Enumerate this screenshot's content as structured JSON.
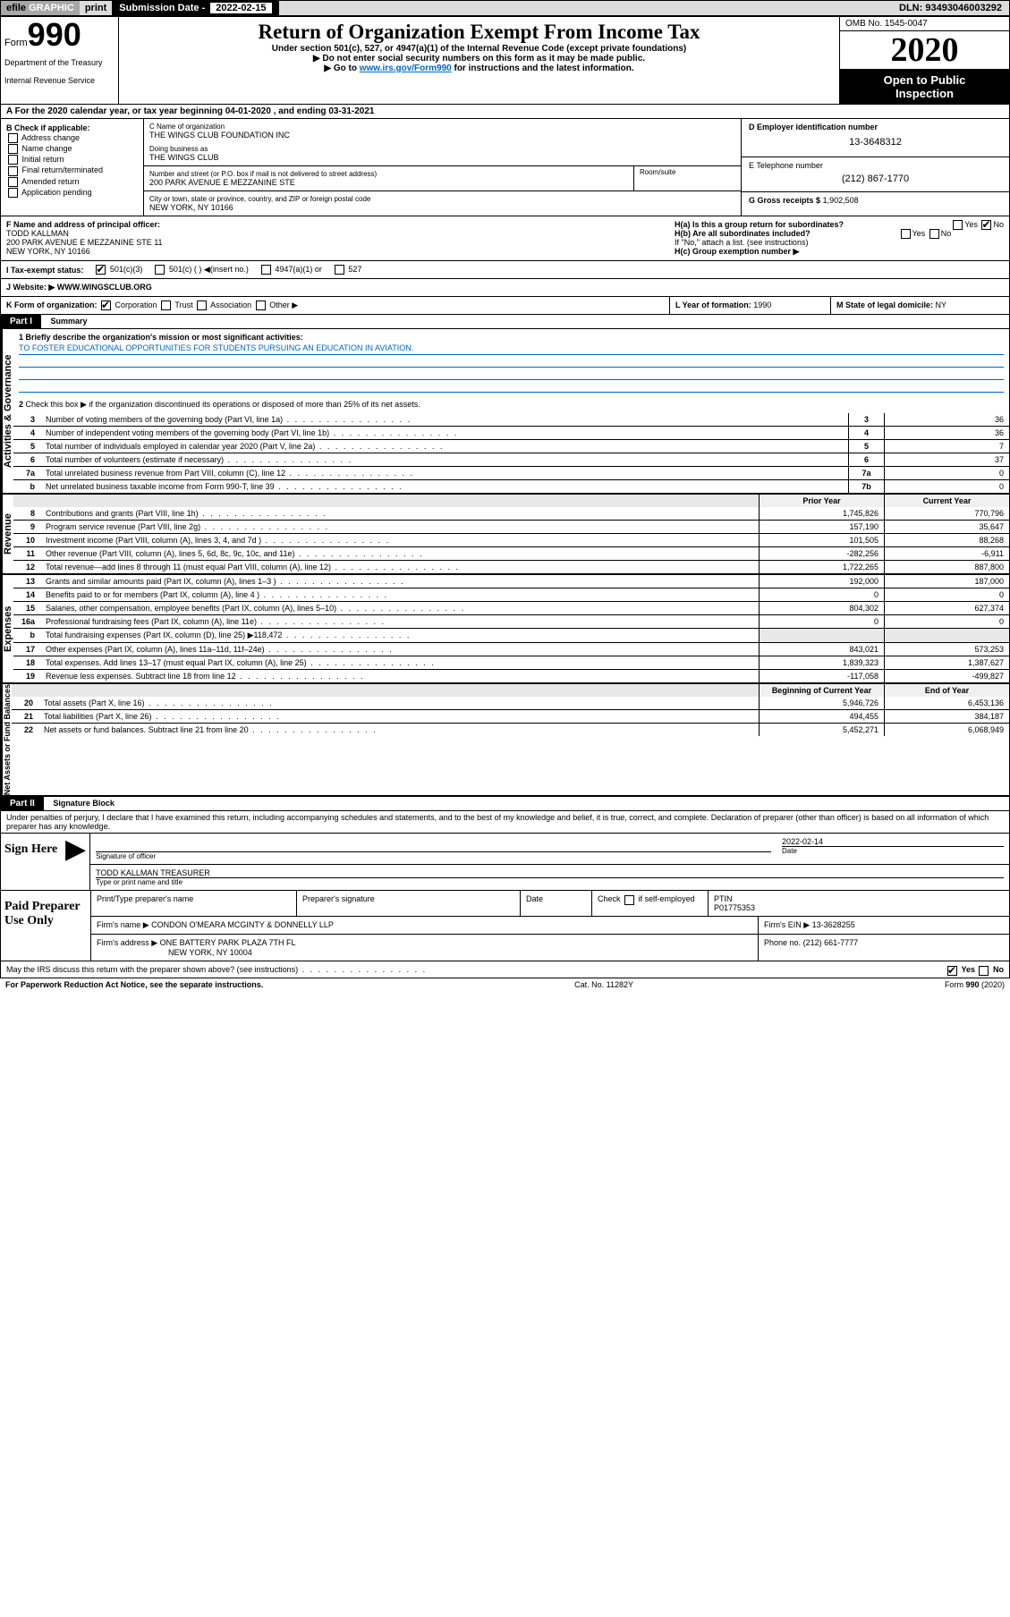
{
  "topbar": {
    "efile": "efile",
    "graphic": "GRAPHIC",
    "print": "print",
    "subdate_label": "Submission Date -",
    "subdate": "2022-02-15",
    "dln": "DLN: 93493046003292"
  },
  "header": {
    "form": "Form",
    "number": "990",
    "dept1": "Department of the Treasury",
    "dept2": "Internal Revenue Service",
    "title": "Return of Organization Exempt From Income Tax",
    "subtitle": "Under section 501(c), 527, or 4947(a)(1) of the Internal Revenue Code (except private foundations)",
    "note1": "▶ Do not enter social security numbers on this form as it may be made public.",
    "note2_pre": "▶ Go to ",
    "note2_link": "www.irs.gov/Form990",
    "note2_post": " for instructions and the latest information.",
    "omb": "OMB No. 1545-0047",
    "year": "2020",
    "inspect1": "Open to Public",
    "inspect2": "Inspection"
  },
  "line_a": {
    "text": "A  For the 2020 calendar year, or tax year beginning 04-01-2020    , and ending 03-31-2021"
  },
  "col_b": {
    "label": "B Check if applicable:",
    "items": [
      "Address change",
      "Name change",
      "Initial return",
      "Final return/terminated",
      "Amended return",
      "Application pending"
    ]
  },
  "col_c": {
    "name_label": "C Name of organization",
    "name": "THE WINGS CLUB FOUNDATION INC",
    "dba_label": "Doing business as",
    "dba": "THE WINGS CLUB",
    "addr_label": "Number and street (or P.O. box if mail is not delivered to street address)",
    "addr": "200 PARK AVENUE E MEZZANINE STE",
    "room_label": "Room/suite",
    "city_label": "City or town, state or province, country, and ZIP or foreign postal code",
    "city": "NEW YORK, NY  10166"
  },
  "col_d": {
    "ein_label": "D Employer identification number",
    "ein": "13-3648312",
    "phone_label": "E Telephone number",
    "phone": "(212) 867-1770",
    "gross_label": "G Gross receipts $",
    "gross": "1,902,508"
  },
  "row_f": {
    "left_label": "F  Name and address of principal officer:",
    "name": "TODD KALLMAN",
    "addr1": "200 PARK AVENUE E MEZZANINE STE 11",
    "addr2": "NEW YORK, NY  10166",
    "ha_label": "H(a)  Is this a group return for subordinates?",
    "ha_yes": "Yes",
    "ha_no": "No",
    "hb_label": "H(b)  Are all subordinates included?",
    "hb_yes": "Yes",
    "hb_no": "No",
    "hb_note": "If \"No,\" attach a list. (see instructions)",
    "hc_label": "H(c)  Group exemption number ▶"
  },
  "row_i": {
    "label": "I   Tax-exempt status:",
    "o1": "501(c)(3)",
    "o2": "501(c) (   ) ◀(insert no.)",
    "o3": "4947(a)(1) or",
    "o4": "527"
  },
  "row_j": {
    "label": "J   Website: ▶",
    "site": "WWW.WINGSCLUB.ORG"
  },
  "row_k": {
    "label": "K Form of organization:",
    "o1": "Corporation",
    "o2": "Trust",
    "o3": "Association",
    "o4": "Other ▶",
    "l_label": "L Year of formation:",
    "l_val": "1990",
    "m_label": "M State of legal domicile:",
    "m_val": "NY"
  },
  "part1": {
    "hdr": "Part I",
    "title": "Summary",
    "q1": "1  Briefly describe the organization's mission or most significant activities:",
    "desc": "TO FOSTER EDUCATIONAL OPPORTUNITIES FOR STUDENTS PURSUING AN EDUCATION IN AVIATION.",
    "q2": "Check this box ▶      if the organization discontinued its operations or disposed of more than 25% of its net assets."
  },
  "governance": {
    "vert": "Activities & Governance",
    "rows": [
      {
        "n": "3",
        "label": "Number of voting members of the governing body (Part VI, line 1a)",
        "box": "3",
        "val": "36"
      },
      {
        "n": "4",
        "label": "Number of independent voting members of the governing body (Part VI, line 1b)",
        "box": "4",
        "val": "36"
      },
      {
        "n": "5",
        "label": "Total number of individuals employed in calendar year 2020 (Part V, line 2a)",
        "box": "5",
        "val": "7"
      },
      {
        "n": "6",
        "label": "Total number of volunteers (estimate if necessary)",
        "box": "6",
        "val": "37"
      },
      {
        "n": "7a",
        "label": "Total unrelated business revenue from Part VIII, column (C), line 12",
        "box": "7a",
        "val": "0"
      },
      {
        "n": "b",
        "label": "Net unrelated business taxable income from Form 990-T, line 39",
        "box": "7b",
        "val": "0"
      }
    ]
  },
  "revenue": {
    "vert": "Revenue",
    "hdr_prior": "Prior Year",
    "hdr_curr": "Current Year",
    "rows": [
      {
        "n": "8",
        "label": "Contributions and grants (Part VIII, line 1h)",
        "p": "1,745,826",
        "c": "770,796"
      },
      {
        "n": "9",
        "label": "Program service revenue (Part VIII, line 2g)",
        "p": "157,190",
        "c": "35,647"
      },
      {
        "n": "10",
        "label": "Investment income (Part VIII, column (A), lines 3, 4, and 7d )",
        "p": "101,505",
        "c": "88,268"
      },
      {
        "n": "11",
        "label": "Other revenue (Part VIII, column (A), lines 5, 6d, 8c, 9c, 10c, and 11e)",
        "p": "-282,256",
        "c": "-6,911"
      },
      {
        "n": "12",
        "label": "Total revenue—add lines 8 through 11 (must equal Part VIII, column (A), line 12)",
        "p": "1,722,265",
        "c": "887,800"
      }
    ]
  },
  "expenses": {
    "vert": "Expenses",
    "rows": [
      {
        "n": "13",
        "label": "Grants and similar amounts paid (Part IX, column (A), lines 1–3 )",
        "p": "192,000",
        "c": "187,000"
      },
      {
        "n": "14",
        "label": "Benefits paid to or for members (Part IX, column (A), line 4 )",
        "p": "0",
        "c": "0"
      },
      {
        "n": "15",
        "label": "Salaries, other compensation, employee benefits (Part IX, column (A), lines 5–10)",
        "p": "804,302",
        "c": "627,374"
      },
      {
        "n": "16a",
        "label": "Professional fundraising fees (Part IX, column (A), line 11e)",
        "p": "0",
        "c": "0"
      },
      {
        "n": "b",
        "label": "Total fundraising expenses (Part IX, column (D), line 25) ▶118,472",
        "p": "",
        "c": "",
        "shade": true
      },
      {
        "n": "17",
        "label": "Other expenses (Part IX, column (A), lines 11a–11d, 11f–24e)",
        "p": "843,021",
        "c": "573,253"
      },
      {
        "n": "18",
        "label": "Total expenses. Add lines 13–17 (must equal Part IX, column (A), line 25)",
        "p": "1,839,323",
        "c": "1,387,627"
      },
      {
        "n": "19",
        "label": "Revenue less expenses. Subtract line 18 from line 12",
        "p": "-117,058",
        "c": "-499,827"
      }
    ]
  },
  "netassets": {
    "vert": "Net Assets or Fund Balances",
    "hdr_begin": "Beginning of Current Year",
    "hdr_end": "End of Year",
    "rows": [
      {
        "n": "20",
        "label": "Total assets (Part X, line 16)",
        "p": "5,946,726",
        "c": "6,453,136"
      },
      {
        "n": "21",
        "label": "Total liabilities (Part X, line 26)",
        "p": "494,455",
        "c": "384,187"
      },
      {
        "n": "22",
        "label": "Net assets or fund balances. Subtract line 21 from line 20",
        "p": "5,452,271",
        "c": "6,068,949"
      }
    ]
  },
  "part2": {
    "hdr": "Part II",
    "title": "Signature Block",
    "decl": "Under penalties of perjury, I declare that I have examined this return, including accompanying schedules and statements, and to the best of my knowledge and belief, it is true, correct, and complete. Declaration of preparer (other than officer) is based on all information of which preparer has any knowledge."
  },
  "sign": {
    "here": "Sign Here",
    "sig_label": "Signature of officer",
    "date_label": "Date",
    "date": "2022-02-14",
    "name": "TODD KALLMAN  TREASURER",
    "name_label": "Type or print name and title"
  },
  "prep": {
    "label": "Paid Preparer Use Only",
    "h1": "Print/Type preparer's name",
    "h2": "Preparer's signature",
    "h3": "Date",
    "h4_pre": "Check",
    "h4_post": "if self-employed",
    "h5": "PTIN",
    "ptin": "P01775353",
    "firm_label": "Firm's name    ▶",
    "firm": "CONDON O'MEARA MCGINTY & DONNELLY LLP",
    "ein_label": "Firm's EIN ▶",
    "ein": "13-3628255",
    "addr_label": "Firm's address ▶",
    "addr1": "ONE BATTERY PARK PLAZA 7TH FL",
    "addr2": "NEW YORK, NY  10004",
    "phone_label": "Phone no.",
    "phone": "(212) 661-7777"
  },
  "discuss": {
    "q": "May the IRS discuss this return with the preparer shown above? (see instructions)",
    "yes": "Yes",
    "no": "No"
  },
  "footer": {
    "left": "For Paperwork Reduction Act Notice, see the separate instructions.",
    "mid": "Cat. No. 11282Y",
    "right_pre": "Form ",
    "right_b": "990",
    "right_post": " (2020)"
  }
}
